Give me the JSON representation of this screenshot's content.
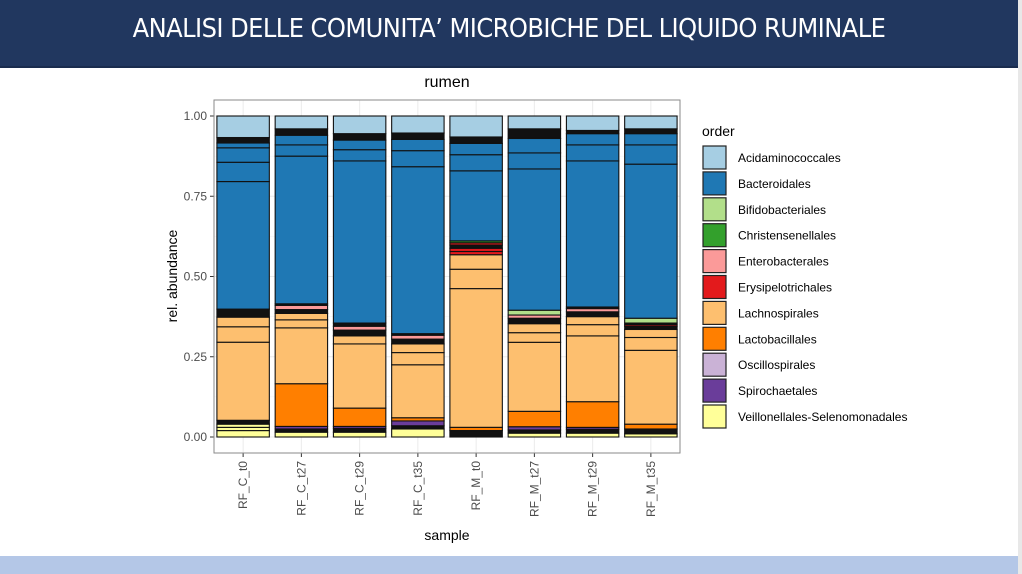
{
  "slide": {
    "title": "ANALISI DELLE COMUNITA’ MICROBICHE DEL LIQUIDO RUMINALE",
    "header_color": "#21375f",
    "footer_color": "#b4c7e7"
  },
  "chart_data": {
    "type": "bar",
    "stacked": true,
    "title": "rumen",
    "xlabel": "sample",
    "ylabel": "rel. abundance",
    "ylim": [
      0,
      1
    ],
    "yticks": [
      "0.00",
      "0.25",
      "0.50",
      "0.75",
      "1.00"
    ],
    "ytick_values": [
      0,
      0.25,
      0.5,
      0.75,
      1.0
    ],
    "grid": true,
    "categories": [
      "RF_C_t0",
      "RF_C_t27",
      "RF_C_t29",
      "RF_C_t35",
      "RF_M_t0",
      "RF_M_t27",
      "RF_M_t29",
      "RF_M_t35"
    ],
    "legend": {
      "title": "order",
      "placement": "right",
      "entries": [
        {
          "name": "Acidaminococcales",
          "color": "#a6cee3"
        },
        {
          "name": "Bacteroidales",
          "color": "#1f78b4"
        },
        {
          "name": "Bifidobacteriales",
          "color": "#b2df8a"
        },
        {
          "name": "Christensenellales",
          "color": "#33a02c"
        },
        {
          "name": "Enterobacterales",
          "color": "#fb9a99"
        },
        {
          "name": "Erysipelotrichales",
          "color": "#e31a1c"
        },
        {
          "name": "Lachnospirales",
          "color": "#fdbf6f"
        },
        {
          "name": "Lactobacillales",
          "color": "#ff7f00"
        },
        {
          "name": "Oscillospirales",
          "color": "#cab2d6"
        },
        {
          "name": "Spirochaetales",
          "color": "#6a3d9a"
        },
        {
          "name": "Veillonellales-Selenomonadales",
          "color": "#ffff99"
        }
      ]
    },
    "other_color": "#111111",
    "stacks_bottom_to_top": [
      {
        "sample": "RF_C_t0",
        "segments": [
          {
            "order": "Veillonellales-Selenomonadales",
            "value": 0.02
          },
          {
            "order": "Veillonellales-Selenomonadales",
            "value": 0.01
          },
          {
            "order": "Veillonellales-Selenomonadales",
            "value": 0.01
          },
          {
            "order": "other",
            "value": 0.012
          },
          {
            "order": "Lachnospirales",
            "value": 0.243
          },
          {
            "order": "Lachnospirales",
            "value": 0.048
          },
          {
            "order": "Lachnospirales",
            "value": 0.03
          },
          {
            "order": "other",
            "value": 0.025
          },
          {
            "order": "Bacteroidales",
            "value": 0.397
          },
          {
            "order": "Bacteroidales",
            "value": 0.06
          },
          {
            "order": "Bacteroidales",
            "value": 0.045
          },
          {
            "order": "Bacteroidales",
            "value": 0.015
          },
          {
            "order": "other",
            "value": 0.017
          },
          {
            "order": "Acidaminococcales",
            "value": 0.067
          }
        ]
      },
      {
        "sample": "RF_C_t27",
        "segments": [
          {
            "order": "Veillonellales-Selenomonadales",
            "value": 0.015
          },
          {
            "order": "other",
            "value": 0.01
          },
          {
            "order": "Spirochaetales",
            "value": 0.008
          },
          {
            "order": "Lactobacillales",
            "value": 0.133
          },
          {
            "order": "Lachnospirales",
            "value": 0.174
          },
          {
            "order": "Lachnospirales",
            "value": 0.025
          },
          {
            "order": "Lachnospirales",
            "value": 0.02
          },
          {
            "order": "other",
            "value": 0.012
          },
          {
            "order": "Enterobacterales",
            "value": 0.013
          },
          {
            "order": "other",
            "value": 0.005
          },
          {
            "order": "Bacteroidales",
            "value": 0.46
          },
          {
            "order": "Bacteroidales",
            "value": 0.035
          },
          {
            "order": "Bacteroidales",
            "value": 0.03
          },
          {
            "order": "other",
            "value": 0.02
          },
          {
            "order": "Acidaminococcales",
            "value": 0.04
          }
        ]
      },
      {
        "sample": "RF_C_t29",
        "segments": [
          {
            "order": "Veillonellales-Selenomonadales",
            "value": 0.015
          },
          {
            "order": "other",
            "value": 0.012
          },
          {
            "order": "Spirochaetales",
            "value": 0.006
          },
          {
            "order": "Lactobacillales",
            "value": 0.057
          },
          {
            "order": "Lachnospirales",
            "value": 0.2
          },
          {
            "order": "Lachnospirales",
            "value": 0.025
          },
          {
            "order": "other",
            "value": 0.018
          },
          {
            "order": "Enterobacterales",
            "value": 0.012
          },
          {
            "order": "other",
            "value": 0.01
          },
          {
            "order": "Bacteroidales",
            "value": 0.505
          },
          {
            "order": "Bacteroidales",
            "value": 0.035
          },
          {
            "order": "Bacteroidales",
            "value": 0.03
          },
          {
            "order": "other",
            "value": 0.02
          },
          {
            "order": "Acidaminococcales",
            "value": 0.055
          }
        ]
      },
      {
        "sample": "RF_C_t35",
        "segments": [
          {
            "order": "Veillonellales-Selenomonadales",
            "value": 0.025
          },
          {
            "order": "other",
            "value": 0.01
          },
          {
            "order": "Spirochaetales",
            "value": 0.015
          },
          {
            "order": "Lactobacillales",
            "value": 0.01
          },
          {
            "order": "Lachnospirales",
            "value": 0.165
          },
          {
            "order": "Lachnospirales",
            "value": 0.038
          },
          {
            "order": "Lachnospirales",
            "value": 0.027
          },
          {
            "order": "other",
            "value": 0.015
          },
          {
            "order": "Enterobacterales",
            "value": 0.012
          },
          {
            "order": "other",
            "value": 0.005
          },
          {
            "order": "Bacteroidales",
            "value": 0.52
          },
          {
            "order": "Bacteroidales",
            "value": 0.05
          },
          {
            "order": "Bacteroidales",
            "value": 0.035
          },
          {
            "order": "other",
            "value": 0.02
          },
          {
            "order": "Acidaminococcales",
            "value": 0.053
          }
        ]
      },
      {
        "sample": "RF_M_t0",
        "segments": [
          {
            "order": "other",
            "value": 0.02
          },
          {
            "order": "Lactobacillales",
            "value": 0.01
          },
          {
            "order": "Lachnospirales",
            "value": 0.43
          },
          {
            "order": "Lachnospirales",
            "value": 0.06
          },
          {
            "order": "Lachnospirales",
            "value": 0.045
          },
          {
            "order": "Erysipelotrichales",
            "value": 0.01
          },
          {
            "order": "Erysipelotrichales",
            "value": 0.01
          },
          {
            "order": "other",
            "value": 0.01
          },
          {
            "order": "Erysipelotrichales",
            "value": 0.007
          },
          {
            "order": "Christensenellales",
            "value": 0.006
          },
          {
            "order": "Bacteroidales",
            "value": 0.217
          },
          {
            "order": "Bacteroidales",
            "value": 0.05
          },
          {
            "order": "Bacteroidales",
            "value": 0.035
          },
          {
            "order": "other",
            "value": 0.02
          },
          {
            "order": "Acidaminococcales",
            "value": 0.065
          }
        ]
      },
      {
        "sample": "RF_M_t27",
        "segments": [
          {
            "order": "Veillonellales-Selenomonadales",
            "value": 0.012
          },
          {
            "order": "other",
            "value": 0.01
          },
          {
            "order": "Spirochaetales",
            "value": 0.01
          },
          {
            "order": "Lactobacillales",
            "value": 0.048
          },
          {
            "order": "Lachnospirales",
            "value": 0.215
          },
          {
            "order": "Lachnospirales",
            "value": 0.03
          },
          {
            "order": "Lachnospirales",
            "value": 0.028
          },
          {
            "order": "other",
            "value": 0.017
          },
          {
            "order": "Enterobacterales",
            "value": 0.01
          },
          {
            "order": "Bifidobacteriales",
            "value": 0.015
          },
          {
            "order": "Bacteroidales",
            "value": 0.44
          },
          {
            "order": "Bacteroidales",
            "value": 0.05
          },
          {
            "order": "Bacteroidales",
            "value": 0.045
          },
          {
            "order": "other",
            "value": 0.03
          },
          {
            "order": "Acidaminococcales",
            "value": 0.04
          }
        ]
      },
      {
        "sample": "RF_M_t29",
        "segments": [
          {
            "order": "Veillonellales-Selenomonadales",
            "value": 0.012
          },
          {
            "order": "other",
            "value": 0.012
          },
          {
            "order": "Spirochaetales",
            "value": 0.006
          },
          {
            "order": "Lactobacillales",
            "value": 0.08
          },
          {
            "order": "Lachnospirales",
            "value": 0.205
          },
          {
            "order": "Lachnospirales",
            "value": 0.035
          },
          {
            "order": "Lachnospirales",
            "value": 0.025
          },
          {
            "order": "other",
            "value": 0.015
          },
          {
            "order": "Enterobacterales",
            "value": 0.01
          },
          {
            "order": "other",
            "value": 0.005
          },
          {
            "order": "Bacteroidales",
            "value": 0.455
          },
          {
            "order": "Bacteroidales",
            "value": 0.05
          },
          {
            "order": "Bacteroidales",
            "value": 0.035
          },
          {
            "order": "other",
            "value": 0.01
          },
          {
            "order": "Acidaminococcales",
            "value": 0.045
          }
        ]
      },
      {
        "sample": "RF_M_t35",
        "segments": [
          {
            "order": "Veillonellales-Selenomonadales",
            "value": 0.01
          },
          {
            "order": "other",
            "value": 0.015
          },
          {
            "order": "Lactobacillales",
            "value": 0.015
          },
          {
            "order": "Lachnospirales",
            "value": 0.23
          },
          {
            "order": "Lachnospirales",
            "value": 0.04
          },
          {
            "order": "Lachnospirales",
            "value": 0.025
          },
          {
            "order": "other",
            "value": 0.01
          },
          {
            "order": "Erysipelotrichales",
            "value": 0.005
          },
          {
            "order": "other",
            "value": 0.005
          },
          {
            "order": "Bifidobacteriales",
            "value": 0.015
          },
          {
            "order": "Bacteroidales",
            "value": 0.48
          },
          {
            "order": "Bacteroidales",
            "value": 0.06
          },
          {
            "order": "Bacteroidales",
            "value": 0.035
          },
          {
            "order": "other",
            "value": 0.015
          },
          {
            "order": "Acidaminococcales",
            "value": 0.04
          }
        ]
      }
    ]
  }
}
